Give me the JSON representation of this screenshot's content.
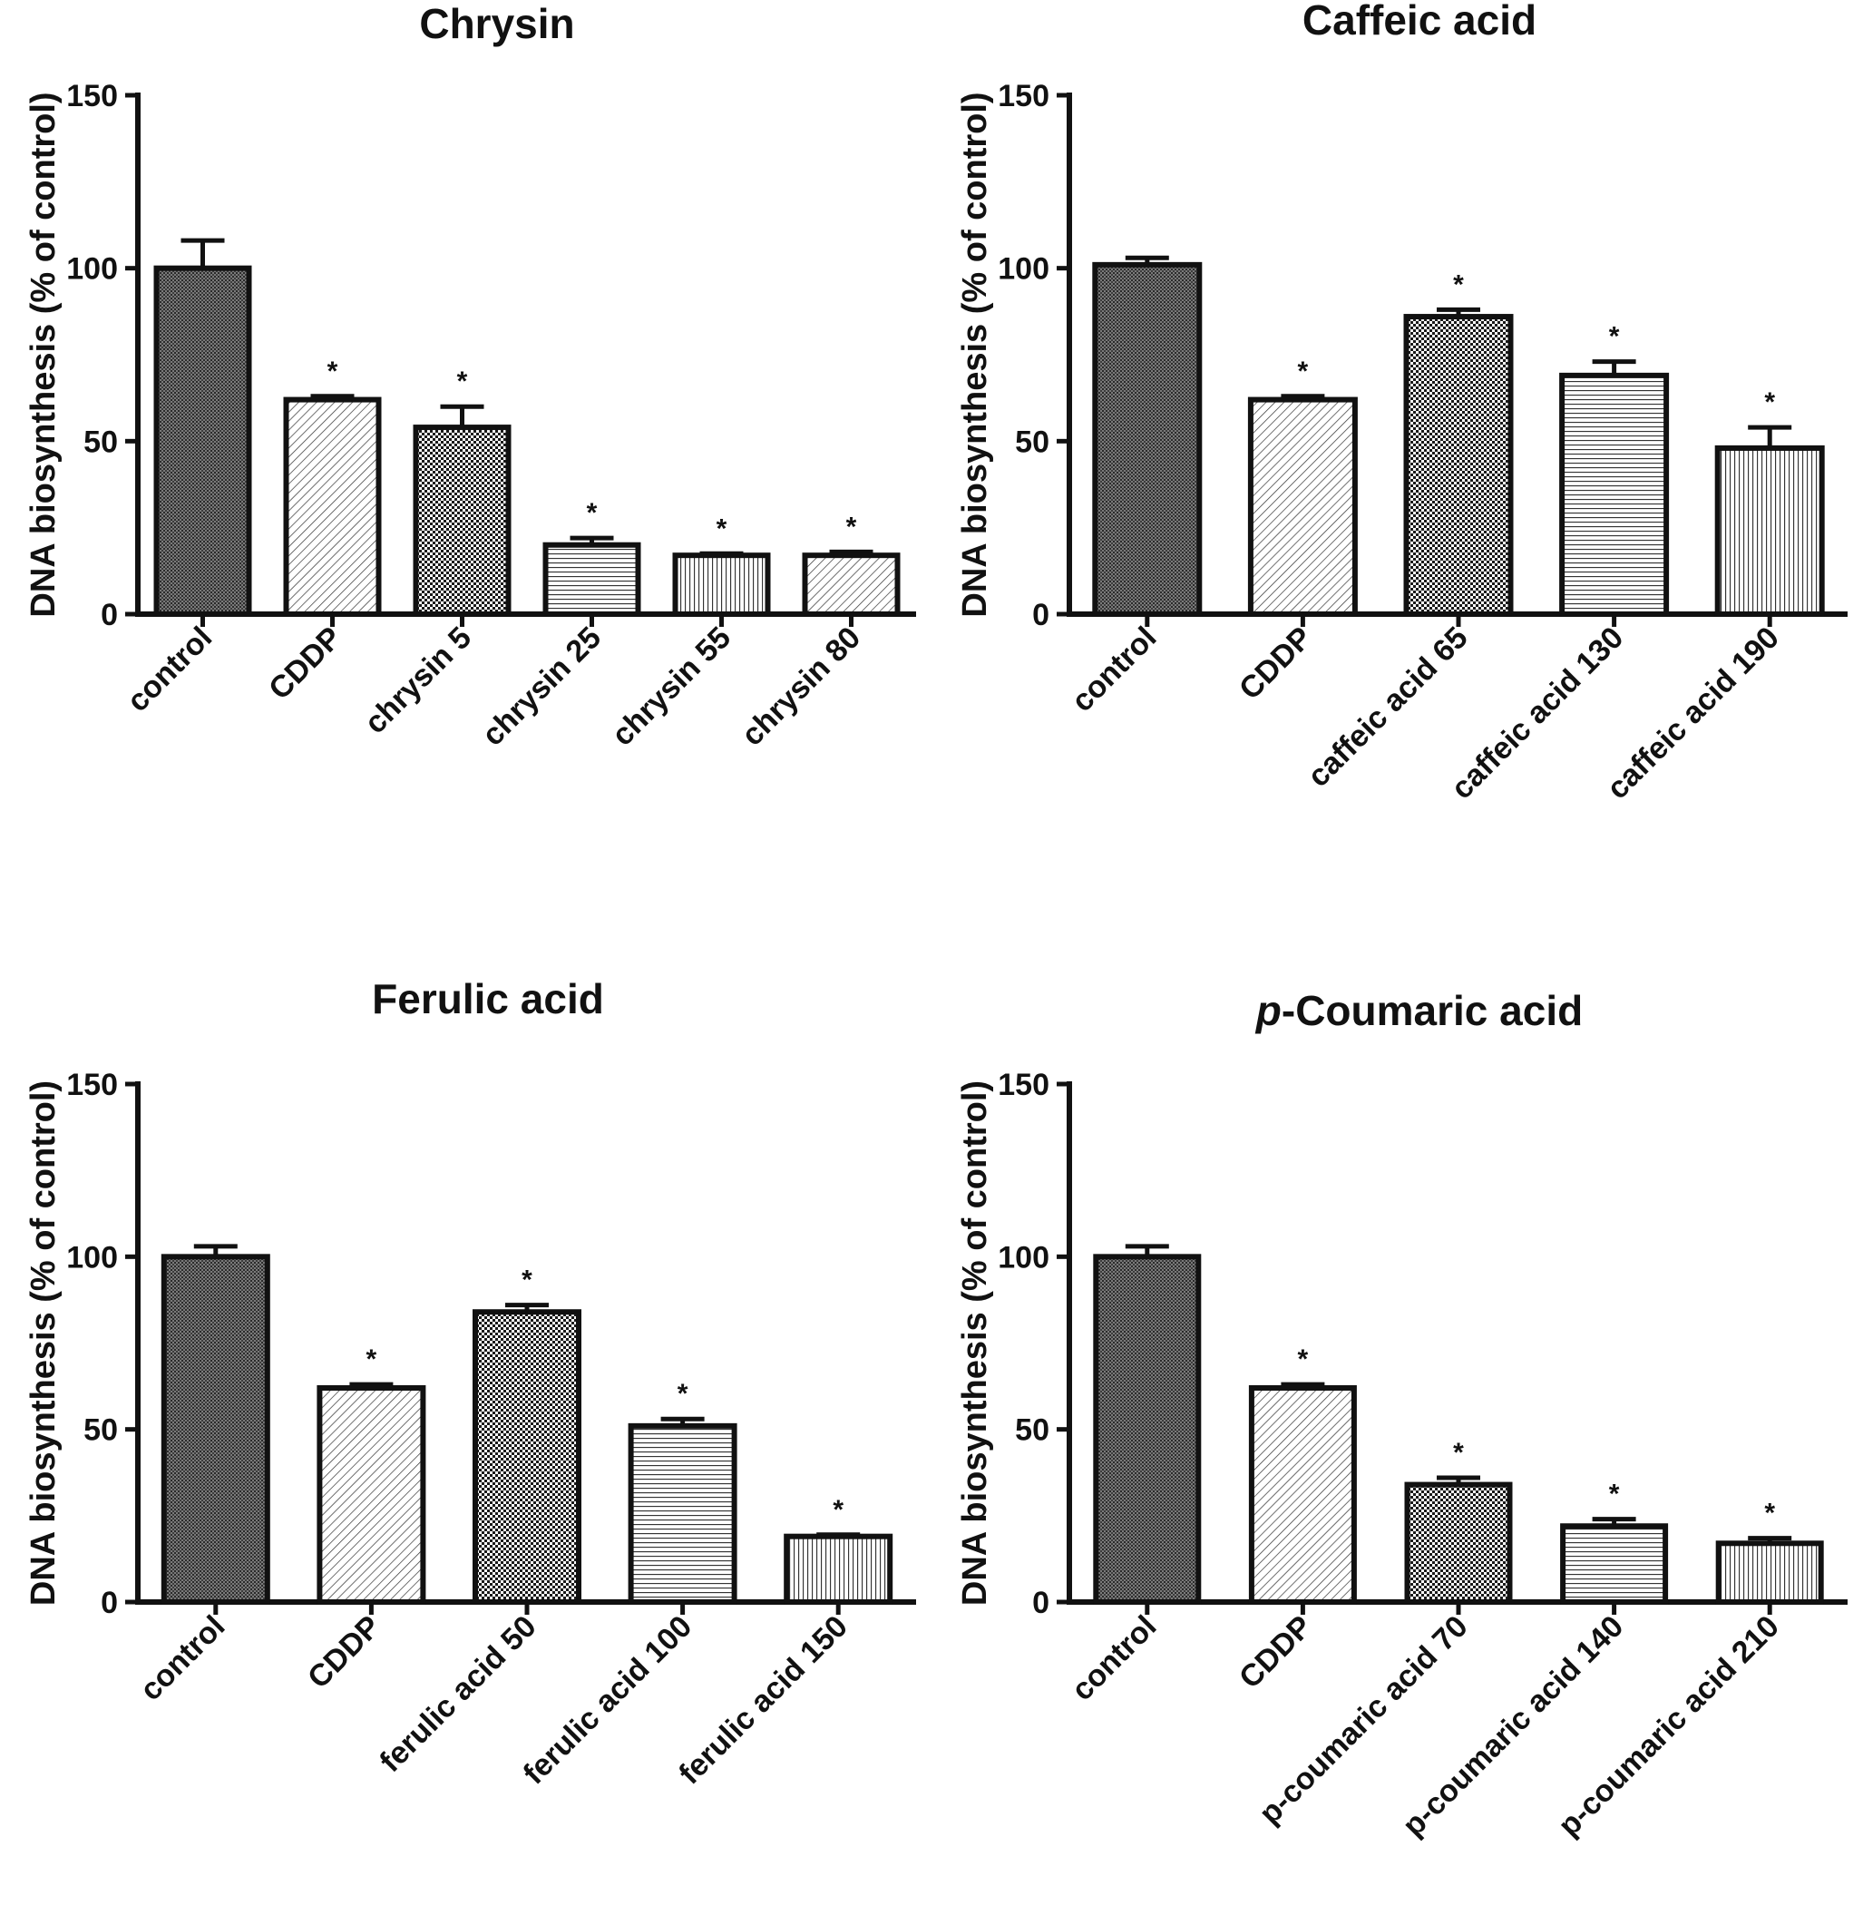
{
  "chart_data": [
    {
      "type": "bar",
      "title": "Chrysin",
      "title_italic_prefix": "",
      "ylabel": "DNA biosynthesis (% of control)",
      "ylim": [
        0,
        150
      ],
      "yticks": [
        0,
        50,
        100,
        150
      ],
      "categories": [
        "control",
        "CDDP",
        "chrysin 5",
        "chrysin 25",
        "chrysin 55",
        "chrysin 80"
      ],
      "values": [
        100,
        62,
        54,
        20,
        17,
        17
      ],
      "errors": [
        8,
        1,
        6,
        2,
        0.5,
        1
      ],
      "significance": [
        "",
        "*",
        "*",
        "*",
        "*",
        "*"
      ],
      "patterns": [
        "dense",
        "diagonal",
        "checker",
        "horizontal",
        "vertical",
        "diagonal"
      ]
    },
    {
      "type": "bar",
      "title": "Caffeic acid",
      "title_italic_prefix": "",
      "ylabel": "DNA biosynthesis (% of control)",
      "ylim": [
        0,
        150
      ],
      "yticks": [
        0,
        50,
        100,
        150
      ],
      "categories": [
        "control",
        "CDDP",
        "caffeic acid 65",
        "caffeic acid 130",
        "caffeic acid 190"
      ],
      "values": [
        101,
        62,
        86,
        69,
        48
      ],
      "errors": [
        2,
        1,
        2,
        4,
        6
      ],
      "significance": [
        "",
        "*",
        "*",
        "*",
        "*"
      ],
      "patterns": [
        "dense",
        "diagonal",
        "checker",
        "horizontal",
        "vertical"
      ]
    },
    {
      "type": "bar",
      "title": "Ferulic acid",
      "title_italic_prefix": "",
      "ylabel": "DNA biosynthesis (% of control)",
      "ylim": [
        0,
        150
      ],
      "yticks": [
        0,
        50,
        100,
        150
      ],
      "categories": [
        "control",
        "CDDP",
        "ferulic acid 50",
        "ferulic acid 100",
        "ferulic acid 150"
      ],
      "values": [
        100,
        62,
        84,
        51,
        19
      ],
      "errors": [
        3,
        1,
        2,
        2,
        0.5
      ],
      "significance": [
        "",
        "*",
        "*",
        "*",
        "*"
      ],
      "patterns": [
        "dense",
        "diagonal",
        "checker",
        "horizontal",
        "vertical"
      ]
    },
    {
      "type": "bar",
      "title": "-Coumaric acid",
      "title_italic_prefix": "p",
      "ylabel": "DNA biosynthesis (% of control)",
      "ylim": [
        0,
        150
      ],
      "yticks": [
        0,
        50,
        100,
        150
      ],
      "categories": [
        "control",
        "CDDP",
        "p-coumaric acid 70",
        "p-coumaric acid 140",
        "p-coumaric acid 210"
      ],
      "values": [
        100,
        62,
        34,
        22,
        17
      ],
      "errors": [
        3,
        1,
        2,
        2,
        1.5
      ],
      "significance": [
        "",
        "*",
        "*",
        "*",
        "*"
      ],
      "patterns": [
        "dense",
        "diagonal",
        "checker",
        "horizontal",
        "vertical"
      ]
    }
  ]
}
